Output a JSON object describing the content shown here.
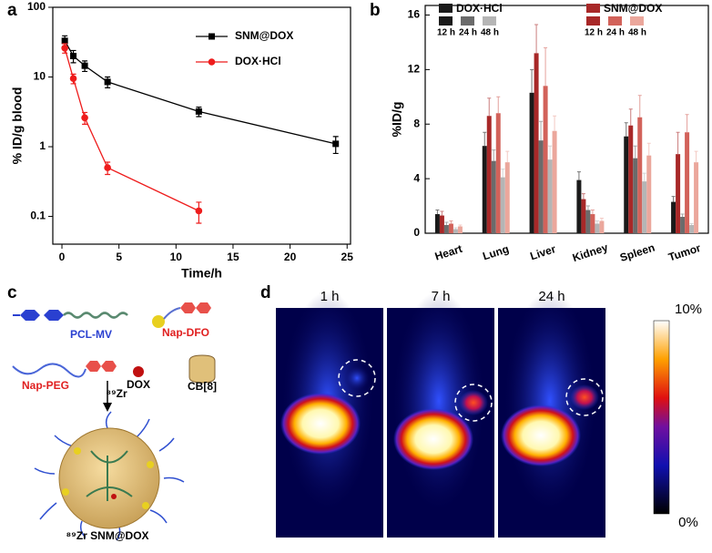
{
  "chart_data": [
    {
      "type": "line",
      "panel_label": "a",
      "xlabel": "Time/h",
      "ylabel": "% ID/g blood",
      "log_y": true,
      "x": [
        0.25,
        1,
        2,
        4,
        12,
        24
      ],
      "series": [
        {
          "name": "SNM@DOX",
          "color": "#000000",
          "marker": "square",
          "values": [
            33,
            20,
            14.5,
            8.5,
            3.2,
            1.1
          ],
          "errors": [
            6,
            4,
            2.5,
            1.5,
            0.5,
            0.3
          ]
        },
        {
          "name": "DOX·HCl",
          "color": "#ee1c1c",
          "marker": "circle",
          "values": [
            26,
            9.5,
            2.6,
            0.5,
            0.12,
            null
          ],
          "errors": [
            4,
            1.5,
            0.5,
            0.1,
            0.04,
            null
          ]
        }
      ],
      "xlim": [
        -0.8,
        25.3
      ],
      "xticks": [
        0,
        5,
        10,
        15,
        20,
        25
      ],
      "ylim": [
        0.04,
        100
      ],
      "yticks": [
        0.1,
        1,
        10,
        100
      ]
    },
    {
      "type": "bar",
      "panel_label": "b",
      "ylabel": "%ID/g",
      "categories": [
        "Heart",
        "Lung",
        "Liver",
        "Kidney",
        "Spleen",
        "Tumor"
      ],
      "legend_groups": [
        "DOX·HCl",
        "SNM@DOX"
      ],
      "series": [
        {
          "name": "12 h",
          "color": "#1a1a1a",
          "values": [
            1.4,
            6.4,
            10.3,
            3.9,
            7.1,
            2.3
          ],
          "errors": [
            0.3,
            1.0,
            1.7,
            0.6,
            1.0,
            0.4
          ]
        },
        {
          "name": "24 h",
          "color": "#6b6b6b",
          "values": [
            0.6,
            5.3,
            6.8,
            1.7,
            5.5,
            1.2
          ],
          "errors": [
            0.2,
            0.8,
            1.4,
            0.3,
            0.9,
            0.2
          ]
        },
        {
          "name": "48 h",
          "color": "#b5b5b5",
          "values": [
            0.3,
            4.1,
            5.4,
            0.7,
            3.8,
            0.6
          ],
          "errors": [
            0.1,
            0.6,
            1.0,
            0.2,
            0.6,
            0.1
          ]
        },
        {
          "name": "12 h",
          "color": "#a82828",
          "values": [
            1.3,
            8.6,
            13.2,
            2.5,
            7.9,
            5.8
          ],
          "errors": [
            0.3,
            1.3,
            2.1,
            0.4,
            1.2,
            1.6
          ]
        },
        {
          "name": "24 h",
          "color": "#d2625a",
          "values": [
            0.7,
            8.8,
            10.8,
            1.4,
            8.5,
            7.4
          ],
          "errors": [
            0.2,
            1.2,
            2.8,
            0.3,
            1.6,
            1.3
          ]
        },
        {
          "name": "48 h",
          "color": "#eba79c",
          "values": [
            0.5,
            5.2,
            7.5,
            0.9,
            5.7,
            5.2
          ],
          "errors": [
            0.1,
            0.8,
            1.1,
            0.2,
            0.9,
            0.8
          ]
        }
      ],
      "ylim": [
        0,
        16.7
      ],
      "yticks": [
        0,
        4,
        8,
        12,
        16
      ]
    }
  ],
  "panel_c": {
    "panel_label": "c",
    "labels": [
      "PCL-MV",
      "Nap-DFO",
      "Nap-PEG",
      "DOX",
      "CB[8]",
      "⁸⁹Zr",
      "⁸⁹Zr SNM@DOX"
    ]
  },
  "panel_d": {
    "panel_label": "d",
    "times": [
      "1 h",
      "7 h",
      "24 h"
    ],
    "scale_max": "10%",
    "scale_min": "0%"
  }
}
